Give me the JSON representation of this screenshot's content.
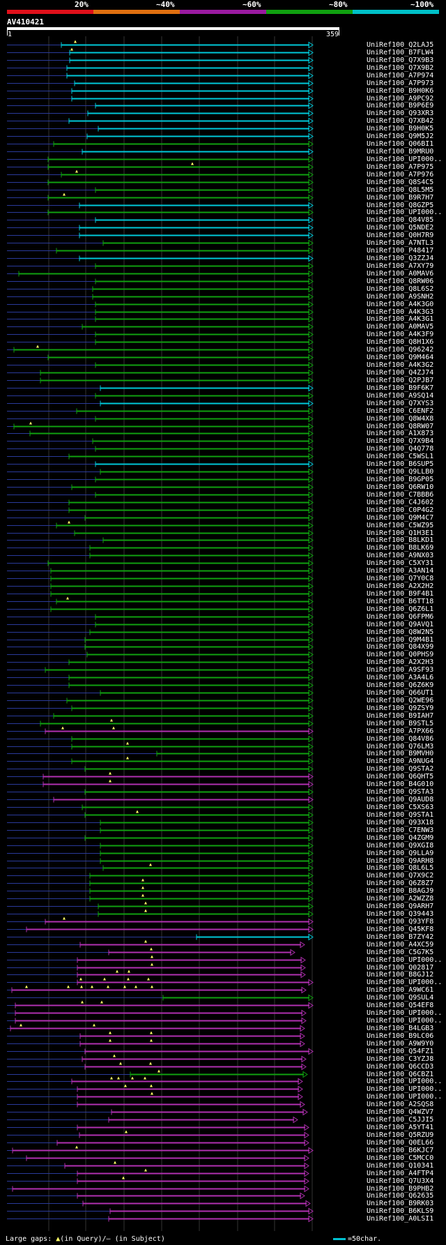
{
  "legend": {
    "segments": [
      {
        "label": "20%",
        "color": "#e0101a"
      },
      {
        "label": "~40%",
        "color": "#e07010"
      },
      {
        "label": "~60%",
        "color": "#9a1aa0"
      },
      {
        "label": "~80%",
        "color": "#10a010"
      },
      {
        "label": "~100%",
        "color": "#00c0c8"
      }
    ]
  },
  "query": {
    "name": "AV410421",
    "start": "1",
    "end": "359"
  },
  "colors": {
    "cyan": "#00c8d8",
    "green": "#10a010",
    "magenta": "#b030b0",
    "query_line": "#2a3a9a",
    "gap": "#ffff66"
  },
  "hits": [
    {
      "id": "UniRef100_Q2LAJ5",
      "c": "cyan",
      "s": 88,
      "e": 448,
      "g": [
        108
      ]
    },
    {
      "id": "UniRef100_B7FLW4",
      "c": "cyan",
      "s": 100,
      "e": 448,
      "g": [
        103
      ]
    },
    {
      "id": "UniRef100_Q7X9B3",
      "c": "cyan",
      "s": 100,
      "e": 448,
      "g": []
    },
    {
      "id": "UniRef100_Q7X9B2",
      "c": "cyan",
      "s": 96,
      "e": 448,
      "g": []
    },
    {
      "id": "UniRef100_A7P974",
      "c": "cyan",
      "s": 96,
      "e": 448,
      "g": []
    },
    {
      "id": "UniRef100_A7P973",
      "c": "cyan",
      "s": 107,
      "e": 448,
      "g": []
    },
    {
      "id": "UniRef100_B9H0K6",
      "c": "cyan",
      "s": 103,
      "e": 448,
      "g": []
    },
    {
      "id": "UniRef100_A9PC92",
      "c": "cyan",
      "s": 103,
      "e": 448,
      "g": []
    },
    {
      "id": "UniRef100_B9P6E9",
      "c": "cyan",
      "s": 137,
      "e": 448,
      "g": []
    },
    {
      "id": "UniRef100_Q93XR3",
      "c": "cyan",
      "s": 126,
      "e": 448,
      "g": []
    },
    {
      "id": "UniRef100_Q7XB42",
      "c": "cyan",
      "s": 99,
      "e": 448,
      "g": []
    },
    {
      "id": "UniRef100_B9H0K5",
      "c": "cyan",
      "s": 141,
      "e": 448,
      "g": []
    },
    {
      "id": "UniRef100_Q9M5J2",
      "c": "cyan",
      "s": 125,
      "e": 448,
      "g": []
    },
    {
      "id": "UniRef100_Q06BI1",
      "c": "green",
      "s": 77,
      "e": 448,
      "g": []
    },
    {
      "id": "UniRef100_B9MRU0",
      "c": "cyan",
      "s": 118,
      "e": 448,
      "g": []
    },
    {
      "id": "UniRef100_UPI000..",
      "c": "green",
      "s": 69,
      "e": 448,
      "g": []
    },
    {
      "id": "UniRef100_A7P975",
      "c": "green",
      "s": 69,
      "e": 448,
      "g": [
        276
      ]
    },
    {
      "id": "UniRef100_A7P976",
      "c": "green",
      "s": 88,
      "e": 448,
      "g": [
        110
      ]
    },
    {
      "id": "UniRef100_Q8S4C5",
      "c": "green",
      "s": 69,
      "e": 448,
      "g": []
    },
    {
      "id": "UniRef100_Q8L5M5",
      "c": "green",
      "s": 137,
      "e": 448,
      "g": []
    },
    {
      "id": "UniRef100_B9R7H7",
      "c": "green",
      "s": 69,
      "e": 448,
      "g": [
        92
      ]
    },
    {
      "id": "UniRef100_Q8GZP5",
      "c": "cyan",
      "s": 114,
      "e": 448,
      "g": []
    },
    {
      "id": "UniRef100_UPI000..",
      "c": "green",
      "s": 69,
      "e": 448,
      "g": []
    },
    {
      "id": "UniRef100_Q84V85",
      "c": "cyan",
      "s": 137,
      "e": 448,
      "g": []
    },
    {
      "id": "UniRef100_Q5NDE2",
      "c": "cyan",
      "s": 114,
      "e": 448,
      "g": []
    },
    {
      "id": "UniRef100_Q0H7R9",
      "c": "cyan",
      "s": 114,
      "e": 448,
      "g": []
    },
    {
      "id": "UniRef100_A7NTL3",
      "c": "green",
      "s": 148,
      "e": 448,
      "g": []
    },
    {
      "id": "UniRef100_P48417",
      "c": "green",
      "s": 81,
      "e": 448,
      "g": []
    },
    {
      "id": "UniRef100_Q3ZZJ4",
      "c": "cyan",
      "s": 114,
      "e": 448,
      "g": []
    },
    {
      "id": "UniRef100_A7XY79",
      "c": "green",
      "s": 137,
      "e": 448,
      "g": []
    },
    {
      "id": "UniRef100_A0MAV6",
      "c": "green",
      "s": 27,
      "e": 448,
      "g": []
    },
    {
      "id": "UniRef100_Q8RW06",
      "c": "green",
      "s": 137,
      "e": 448,
      "g": []
    },
    {
      "id": "UniRef100_Q8L6S2",
      "c": "green",
      "s": 133,
      "e": 448,
      "g": []
    },
    {
      "id": "UniRef100_A9SNH2",
      "c": "green",
      "s": 133,
      "e": 448,
      "g": []
    },
    {
      "id": "UniRef100_A4K3G0",
      "c": "green",
      "s": 137,
      "e": 448,
      "g": []
    },
    {
      "id": "UniRef100_A4K3G3",
      "c": "green",
      "s": 137,
      "e": 448,
      "g": []
    },
    {
      "id": "UniRef100_A4K3G1",
      "c": "green",
      "s": 137,
      "e": 448,
      "g": []
    },
    {
      "id": "UniRef100_A0MAV5",
      "c": "green",
      "s": 118,
      "e": 448,
      "g": []
    },
    {
      "id": "UniRef100_A4K3F9",
      "c": "green",
      "s": 137,
      "e": 448,
      "g": []
    },
    {
      "id": "UniRef100_Q8H1X6",
      "c": "green",
      "s": 137,
      "e": 448,
      "g": []
    },
    {
      "id": "UniRef100_Q96242",
      "c": "green",
      "s": 20,
      "e": 448,
      "g": [
        54
      ]
    },
    {
      "id": "UniRef100_Q9M464",
      "c": "green",
      "s": 69,
      "e": 448,
      "g": []
    },
    {
      "id": "UniRef100_A4K3G2",
      "c": "green",
      "s": 137,
      "e": 448,
      "g": []
    },
    {
      "id": "UniRef100_Q4ZJ74",
      "c": "green",
      "s": 58,
      "e": 448,
      "g": []
    },
    {
      "id": "UniRef100_Q2PJB7",
      "c": "green",
      "s": 58,
      "e": 448,
      "g": []
    },
    {
      "id": "UniRef100_B9F6K7",
      "c": "cyan",
      "s": 144,
      "e": 448,
      "g": []
    },
    {
      "id": "UniRef100_A9SQ14",
      "c": "green",
      "s": 137,
      "e": 448,
      "g": []
    },
    {
      "id": "UniRef100_Q7XYS3",
      "c": "cyan",
      "s": 144,
      "e": 448,
      "g": []
    },
    {
      "id": "UniRef100_C6ENF2",
      "c": "green",
      "s": 110,
      "e": 448,
      "g": []
    },
    {
      "id": "UniRef100_Q8W4X8",
      "c": "green",
      "s": 137,
      "e": 448,
      "g": []
    },
    {
      "id": "UniRef100_Q8RW07",
      "c": "green",
      "s": 20,
      "e": 448,
      "g": [
        44
      ]
    },
    {
      "id": "UniRef100_A1X873",
      "c": "green",
      "s": 43,
      "e": 448,
      "g": []
    },
    {
      "id": "UniRef100_Q7X9B4",
      "c": "green",
      "s": 133,
      "e": 448,
      "g": []
    },
    {
      "id": "UniRef100_Q4Q778",
      "c": "green",
      "s": 137,
      "e": 448,
      "g": []
    },
    {
      "id": "UniRef100_C5WSL1",
      "c": "green",
      "s": 99,
      "e": 448,
      "g": []
    },
    {
      "id": "UniRef100_B6SUP5",
      "c": "cyan",
      "s": 137,
      "e": 448,
      "g": []
    },
    {
      "id": "UniRef100_Q9LLB0",
      "c": "green",
      "s": 144,
      "e": 448,
      "g": []
    },
    {
      "id": "UniRef100_B9GP05",
      "c": "green",
      "s": 137,
      "e": 448,
      "g": []
    },
    {
      "id": "UniRef100_Q6RW10",
      "c": "green",
      "s": 103,
      "e": 448,
      "g": []
    },
    {
      "id": "UniRef100_C7BBB6",
      "c": "green",
      "s": 137,
      "e": 448,
      "g": []
    },
    {
      "id": "UniRef100_C4J602",
      "c": "green",
      "s": 99,
      "e": 448,
      "g": []
    },
    {
      "id": "UniRef100_C0P4G2",
      "c": "green",
      "s": 99,
      "e": 448,
      "g": []
    },
    {
      "id": "UniRef100_Q9M4C7",
      "c": "green",
      "s": 122,
      "e": 448,
      "g": []
    },
    {
      "id": "UniRef100_C5WZ95",
      "c": "green",
      "s": 81,
      "e": 448,
      "g": [
        99
      ]
    },
    {
      "id": "UniRef100_Q1H3E1",
      "c": "green",
      "s": 107,
      "e": 448,
      "g": []
    },
    {
      "id": "UniRef100_B8LKD1",
      "c": "green",
      "s": 148,
      "e": 448,
      "g": []
    },
    {
      "id": "UniRef100_B8LK69",
      "c": "green",
      "s": 129,
      "e": 448,
      "g": []
    },
    {
      "id": "UniRef100_A9NX03",
      "c": "green",
      "s": 129,
      "e": 448,
      "g": []
    },
    {
      "id": "UniRef100_C5XY31",
      "c": "green",
      "s": 69,
      "e": 448,
      "g": []
    },
    {
      "id": "UniRef100_A3AN14",
      "c": "green",
      "s": 73,
      "e": 448,
      "g": []
    },
    {
      "id": "UniRef100_Q7Y0C8",
      "c": "green",
      "s": 73,
      "e": 448,
      "g": []
    },
    {
      "id": "UniRef100_A2X2H2",
      "c": "green",
      "s": 73,
      "e": 448,
      "g": []
    },
    {
      "id": "UniRef100_B9F4B1",
      "c": "green",
      "s": 73,
      "e": 448,
      "g": []
    },
    {
      "id": "UniRef100_B6TT18",
      "c": "green",
      "s": 81,
      "e": 448,
      "g": [
        97
      ]
    },
    {
      "id": "UniRef100_Q6Z6L1",
      "c": "green",
      "s": 73,
      "e": 448,
      "g": []
    },
    {
      "id": "UniRef100_Q6FPM6",
      "c": "green",
      "s": 137,
      "e": 448,
      "g": []
    },
    {
      "id": "UniRef100_Q9AVQ1",
      "c": "green",
      "s": 137,
      "e": 448,
      "g": []
    },
    {
      "id": "UniRef100_Q8W2N5",
      "c": "green",
      "s": 129,
      "e": 448,
      "g": []
    },
    {
      "id": "UniRef100_Q9M4B1",
      "c": "green",
      "s": 122,
      "e": 448,
      "g": []
    },
    {
      "id": "UniRef100_Q84X99",
      "c": "green",
      "s": 122,
      "e": 448,
      "g": []
    },
    {
      "id": "UniRef100_Q0PHS9",
      "c": "green",
      "s": 125,
      "e": 448,
      "g": []
    },
    {
      "id": "UniRef100_A2X2H3",
      "c": "green",
      "s": 99,
      "e": 448,
      "g": []
    },
    {
      "id": "UniRef100_A9SF93",
      "c": "green",
      "s": 65,
      "e": 448,
      "g": []
    },
    {
      "id": "UniRef100_A3A4L6",
      "c": "green",
      "s": 99,
      "e": 448,
      "g": []
    },
    {
      "id": "UniRef100_Q6Z6K9",
      "c": "green",
      "s": 99,
      "e": 448,
      "g": []
    },
    {
      "id": "UniRef100_Q66UT1",
      "c": "green",
      "s": 144,
      "e": 448,
      "g": []
    },
    {
      "id": "UniRef100_Q2WE96",
      "c": "green",
      "s": 96,
      "e": 448,
      "g": []
    },
    {
      "id": "UniRef100_Q9ZSY9",
      "c": "green",
      "s": 103,
      "e": 448,
      "g": []
    },
    {
      "id": "UniRef100_B9IAH7",
      "c": "green",
      "s": 77,
      "e": 448,
      "g": []
    },
    {
      "id": "UniRef100_B9STL5",
      "c": "green",
      "s": 58,
      "e": 448,
      "g": [
        160
      ]
    },
    {
      "id": "UniRef100_A7PX66",
      "c": "magenta",
      "s": 65,
      "e": 448,
      "g": [
        90,
        163
      ]
    },
    {
      "id": "UniRef100_Q84V86",
      "c": "green",
      "s": 103,
      "e": 448,
      "g": []
    },
    {
      "id": "UniRef100_Q76LM3",
      "c": "green",
      "s": 103,
      "e": 448,
      "g": [
        183
      ]
    },
    {
      "id": "UniRef100_B9MVH0",
      "c": "green",
      "s": 225,
      "e": 448,
      "g": []
    },
    {
      "id": "UniRef100_A9NUG4",
      "c": "green",
      "s": 103,
      "e": 448,
      "g": [
        183
      ]
    },
    {
      "id": "UniRef100_Q9STA2",
      "c": "green",
      "s": 122,
      "e": 448,
      "g": []
    },
    {
      "id": "UniRef100_Q6QHT5",
      "c": "magenta",
      "s": 62,
      "e": 448,
      "g": [
        158
      ]
    },
    {
      "id": "UniRef100_B4G010",
      "c": "magenta",
      "s": 62,
      "e": 448,
      "g": [
        158
      ]
    },
    {
      "id": "UniRef100_Q9STA3",
      "c": "green",
      "s": 122,
      "e": 448,
      "g": []
    },
    {
      "id": "UniRef100_Q9AUD8",
      "c": "magenta",
      "s": 77,
      "e": 448,
      "g": []
    },
    {
      "id": "UniRef100_C5XS63",
      "c": "green",
      "s": 118,
      "e": 448,
      "g": []
    },
    {
      "id": "UniRef100_Q9STA1",
      "c": "green",
      "s": 122,
      "e": 448,
      "g": [
        197
      ]
    },
    {
      "id": "UniRef100_Q93X18",
      "c": "green",
      "s": 144,
      "e": 448,
      "g": []
    },
    {
      "id": "UniRef100_C7ENW3",
      "c": "green",
      "s": 144,
      "e": 448,
      "g": []
    },
    {
      "id": "UniRef100_Q4ZGM9",
      "c": "green",
      "s": 122,
      "e": 448,
      "g": []
    },
    {
      "id": "UniRef100_Q9XGI8",
      "c": "green",
      "s": 144,
      "e": 448,
      "g": []
    },
    {
      "id": "UniRef100_Q9LLA9",
      "c": "green",
      "s": 144,
      "e": 448,
      "g": []
    },
    {
      "id": "UniRef100_Q9ARH8",
      "c": "green",
      "s": 144,
      "e": 448,
      "g": []
    },
    {
      "id": "UniRef100_Q8L6L5",
      "c": "green",
      "s": 148,
      "e": 448,
      "g": [
        216
      ]
    },
    {
      "id": "UniRef100_Q7X9C2",
      "c": "green",
      "s": 129,
      "e": 448,
      "g": []
    },
    {
      "id": "UniRef100_Q6Z8Z7",
      "c": "green",
      "s": 129,
      "e": 448,
      "g": [
        205
      ]
    },
    {
      "id": "UniRef100_B8AGJ9",
      "c": "green",
      "s": 129,
      "e": 448,
      "g": [
        205
      ]
    },
    {
      "id": "UniRef100_A2WZZ8",
      "c": "green",
      "s": 129,
      "e": 448,
      "g": [
        205
      ]
    },
    {
      "id": "UniRef100_Q9ARH7",
      "c": "green",
      "s": 141,
      "e": 448,
      "g": [
        209
      ]
    },
    {
      "id": "UniRef100_Q39443",
      "c": "green",
      "s": 141,
      "e": 448,
      "g": [
        209
      ]
    },
    {
      "id": "UniRef100_Q93YF8",
      "c": "magenta",
      "s": 65,
      "e": 448,
      "g": [
        92
      ]
    },
    {
      "id": "UniRef100_Q45KF8",
      "c": "magenta",
      "s": 38,
      "e": 448,
      "g": []
    },
    {
      "id": "UniRef100_B7ZY42",
      "c": "cyan",
      "s": 282,
      "e": 448,
      "g": []
    },
    {
      "id": "UniRef100_A4XC59",
      "c": "magenta",
      "s": 115,
      "e": 436,
      "g": [
        209
      ]
    },
    {
      "id": "UniRef100_C5G7K5",
      "c": "magenta",
      "s": 156,
      "e": 422,
      "g": [
        217
      ]
    },
    {
      "id": "UniRef100_UPI000..",
      "c": "magenta",
      "s": 111,
      "e": 437,
      "g": [
        218
      ]
    },
    {
      "id": "UniRef100_Q02817",
      "c": "magenta",
      "s": 111,
      "e": 437,
      "g": [
        218
      ]
    },
    {
      "id": "UniRef100_B8GJ12",
      "c": "magenta",
      "s": 111,
      "e": 437,
      "g": [
        168,
        185
      ]
    },
    {
      "id": "UniRef100_UPI000..",
      "c": "magenta",
      "s": 111,
      "e": 448,
      "g": [
        116,
        150,
        184,
        213
      ]
    },
    {
      "id": "UniRef100_A9WC61",
      "c": "magenta",
      "s": 17,
      "e": 438,
      "g": [
        38,
        98,
        117,
        132,
        155,
        179,
        195,
        218
      ]
    },
    {
      "id": "UniRef100_Q9SUL4",
      "c": "green",
      "s": 234,
      "e": 448,
      "g": []
    },
    {
      "id": "UniRef100_Q54EF8",
      "c": "magenta",
      "s": 22,
      "e": 448,
      "g": [
        118,
        146
      ]
    },
    {
      "id": "UniRef100_UPI000..",
      "c": "magenta",
      "s": 22,
      "e": 438,
      "g": []
    },
    {
      "id": "UniRef100_UPI000..",
      "c": "magenta",
      "s": 22,
      "e": 438,
      "g": []
    },
    {
      "id": "UniRef100_B4LGB3",
      "c": "magenta",
      "s": 15,
      "e": 436,
      "g": [
        30,
        135
      ]
    },
    {
      "id": "UniRef100_B9LC06",
      "c": "magenta",
      "s": 115,
      "e": 436,
      "g": [
        158,
        217
      ]
    },
    {
      "id": "UniRef100_A9W9Y0",
      "c": "magenta",
      "s": 115,
      "e": 436,
      "g": [
        158,
        217
      ]
    },
    {
      "id": "UniRef100_Q54FZ1",
      "c": "magenta",
      "s": 122,
      "e": 448,
      "g": []
    },
    {
      "id": "UniRef100_C3YZJ8",
      "c": "magenta",
      "s": 118,
      "e": 438,
      "g": [
        164
      ]
    },
    {
      "id": "UniRef100_Q6CCD3",
      "c": "magenta",
      "s": 122,
      "e": 438,
      "g": [
        173,
        216
      ]
    },
    {
      "id": "UniRef100_Q6CBZ1",
      "c": "green",
      "s": 187,
      "e": 440,
      "g": [
        228
      ]
    },
    {
      "id": "UniRef100_UPI000..",
      "c": "magenta",
      "s": 103,
      "e": 433,
      "g": [
        160,
        170,
        190,
        208
      ]
    },
    {
      "id": "UniRef100_UPI000..",
      "c": "magenta",
      "s": 111,
      "e": 433,
      "g": [
        180,
        217
      ]
    },
    {
      "id": "UniRef100_UPI000..",
      "c": "magenta",
      "s": 111,
      "e": 433,
      "g": [
        218
      ]
    },
    {
      "id": "UniRef100_A2SQS8",
      "c": "magenta",
      "s": 111,
      "e": 436,
      "g": []
    },
    {
      "id": "UniRef100_Q4WZV7",
      "c": "magenta",
      "s": 160,
      "e": 440,
      "g": []
    },
    {
      "id": "UniRef100_C5JJI5",
      "c": "magenta",
      "s": 156,
      "e": 426,
      "g": []
    },
    {
      "id": "UniRef100_A5YT41",
      "c": "magenta",
      "s": 111,
      "e": 442,
      "g": []
    },
    {
      "id": "UniRef100_Q5RZU9",
      "c": "magenta",
      "s": 114,
      "e": 442,
      "g": [
        181
      ]
    },
    {
      "id": "UniRef100_Q0EL66",
      "c": "magenta",
      "s": 82,
      "e": 442,
      "g": []
    },
    {
      "id": "UniRef100_B6KJC7",
      "c": "magenta",
      "s": 18,
      "e": 448,
      "g": [
        110
      ]
    },
    {
      "id": "UniRef100_C5MCC0",
      "c": "magenta",
      "s": 38,
      "e": 442,
      "g": []
    },
    {
      "id": "UniRef100_Q10341",
      "c": "magenta",
      "s": 93,
      "e": 442,
      "g": [
        165
      ]
    },
    {
      "id": "UniRef100_A4FTP4",
      "c": "magenta",
      "s": 111,
      "e": 442,
      "g": [
        209
      ]
    },
    {
      "id": "UniRef100_Q7U3X4",
      "c": "magenta",
      "s": 111,
      "e": 442,
      "g": [
        177
      ]
    },
    {
      "id": "UniRef100_B9PHB2",
      "c": "magenta",
      "s": 18,
      "e": 442,
      "g": []
    },
    {
      "id": "UniRef100_Q62635",
      "c": "magenta",
      "s": 111,
      "e": 436,
      "g": []
    },
    {
      "id": "UniRef100_B9RK03",
      "c": "magenta",
      "s": 119,
      "e": 444,
      "g": []
    },
    {
      "id": "UniRef100_B6KLS9",
      "c": "magenta",
      "s": 158,
      "e": 448,
      "g": []
    },
    {
      "id": "UniRef100_A0LSI1",
      "c": "magenta",
      "s": 156,
      "e": 448,
      "g": []
    }
  ],
  "footer": {
    "prefix": "Large gaps:",
    "tri": "▲",
    "query_text": "(in Query)/",
    "dash": "–",
    "subject_text": "(in Subject)"
  },
  "scale": {
    "label": "=50char."
  }
}
